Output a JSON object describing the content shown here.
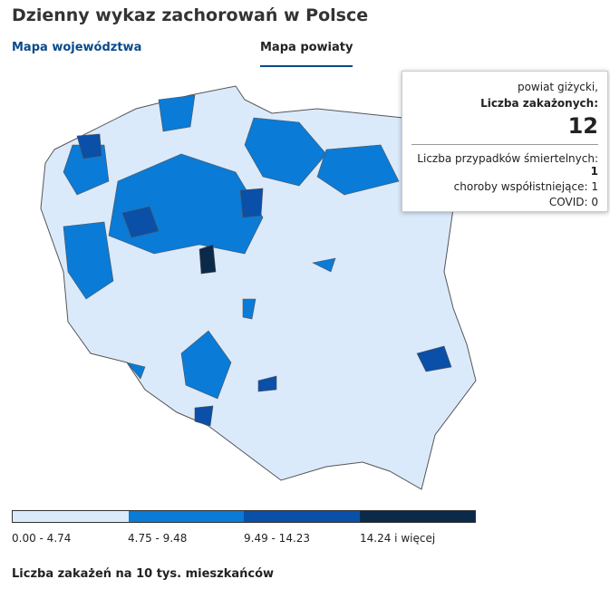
{
  "header": {
    "title": "Dzienny wykaz zachorowań w Polsce"
  },
  "tabs": [
    "Mapa województwa",
    "Mapa powiaty"
  ],
  "tooltip": {
    "region": "powiat giżycki,",
    "infected_label": "Liczba zakażonych:",
    "infected": 12,
    "deaths_label": "Liczba przypadków śmiertelnych:",
    "deaths": 1,
    "comorbid_label": "choroby współistniejące:",
    "comorbid": 1,
    "covid_label": "COVID:",
    "covid": 0
  },
  "legend": {
    "items": [
      {
        "label": "0.00 - 4.74",
        "color": "#dbeafb"
      },
      {
        "label": "4.75 - 9.48",
        "color": "#0a7bd6"
      },
      {
        "label": "9.49 - 14.23",
        "color": "#0a4fa8"
      },
      {
        "label": "14.24 i więcej",
        "color": "#0b2a4a"
      }
    ],
    "caption": "Liczba zakażeń na 10 tys. mieszkańców"
  }
}
